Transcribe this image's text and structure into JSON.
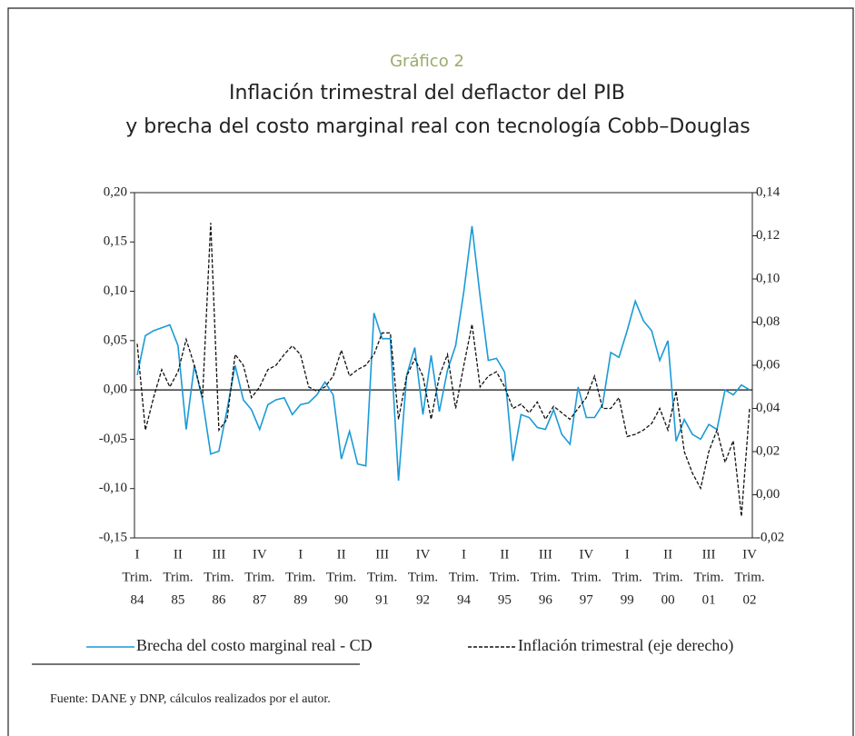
{
  "chart_data": {
    "type": "line",
    "figure_label": "Gráfico 2",
    "title": [
      "Inflación trimestral del deflactor del PIB",
      "y brecha del costo marginal real con tecnología Cobb–Douglas"
    ],
    "source": "Fuente: DANE y DNP, cálculos realizados por el autor.",
    "categories": [
      [
        "I",
        "Trim.",
        "84"
      ],
      null,
      null,
      null,
      null,
      [
        "II",
        "Trim.",
        "85"
      ],
      null,
      null,
      null,
      null,
      [
        "III",
        "Trim.",
        "86"
      ],
      null,
      null,
      null,
      null,
      [
        "IV",
        "Trim.",
        "87"
      ],
      null,
      null,
      null,
      null,
      [
        "I",
        "Trim.",
        "89"
      ],
      null,
      null,
      null,
      null,
      [
        "II",
        "Trim.",
        "90"
      ],
      null,
      null,
      null,
      null,
      [
        "III",
        "Trim.",
        "91"
      ],
      null,
      null,
      null,
      null,
      [
        "IV",
        "Trim.",
        "92"
      ],
      null,
      null,
      null,
      null,
      [
        "I",
        "Trim.",
        "94"
      ],
      null,
      null,
      null,
      null,
      [
        "II",
        "Trim.",
        "95"
      ],
      null,
      null,
      null,
      null,
      [
        "III",
        "Trim.",
        "96"
      ],
      null,
      null,
      null,
      null,
      [
        "IV",
        "Trim.",
        "97"
      ],
      null,
      null,
      null,
      null,
      [
        "I",
        "Trim.",
        "99"
      ],
      null,
      null,
      null,
      null,
      [
        "II",
        "Trim.",
        "00"
      ],
      null,
      null,
      null,
      null,
      [
        "III",
        "Trim.",
        "01"
      ],
      null,
      null,
      null,
      null,
      [
        "IV",
        "Trim.",
        "02"
      ]
    ],
    "series": [
      {
        "name": "Brecha del costo marginal real - CD",
        "color": "#1a9ad6",
        "axis": "y",
        "dash": false,
        "values": [
          0.015,
          0.055,
          0.06,
          0.063,
          0.066,
          0.045,
          -0.04,
          0.025,
          -0.01,
          -0.065,
          -0.062,
          -0.02,
          0.025,
          -0.01,
          -0.02,
          -0.04,
          -0.015,
          -0.01,
          -0.008,
          -0.025,
          -0.015,
          -0.013,
          -0.005,
          0.008,
          -0.005,
          -0.07,
          -0.042,
          -0.075,
          -0.077,
          0.078,
          0.052,
          0.052,
          -0.092,
          0.015,
          0.043,
          -0.025,
          0.035,
          -0.022,
          0.02,
          0.045,
          0.1,
          0.166,
          0.095,
          0.03,
          0.032,
          0.018,
          -0.072,
          -0.025,
          -0.028,
          -0.038,
          -0.04,
          -0.02,
          -0.045,
          -0.055,
          0.003,
          -0.028,
          -0.028,
          -0.015,
          0.038,
          0.033,
          0.06,
          0.09,
          0.07,
          0.06,
          0.03,
          0.05,
          -0.052,
          -0.03,
          -0.045,
          -0.05,
          -0.035,
          -0.04,
          0.0,
          -0.005,
          0.005,
          0.0
        ]
      },
      {
        "name": "Inflación trimestral (eje derecho)",
        "color": "#111111",
        "axis": "y2",
        "dash": true,
        "values": [
          0.07,
          0.03,
          0.045,
          0.058,
          0.05,
          0.057,
          0.072,
          0.06,
          0.045,
          0.126,
          0.03,
          0.035,
          0.065,
          0.06,
          0.045,
          0.05,
          0.058,
          0.06,
          0.065,
          0.069,
          0.065,
          0.05,
          0.048,
          0.05,
          0.055,
          0.067,
          0.055,
          0.058,
          0.06,
          0.065,
          0.075,
          0.075,
          0.035,
          0.055,
          0.063,
          0.055,
          0.035,
          0.055,
          0.065,
          0.04,
          0.06,
          0.079,
          0.05,
          0.055,
          0.057,
          0.05,
          0.04,
          0.042,
          0.038,
          0.043,
          0.035,
          0.041,
          0.038,
          0.035,
          0.04,
          0.045,
          0.055,
          0.04,
          0.04,
          0.045,
          0.027,
          0.028,
          0.03,
          0.033,
          0.04,
          0.03,
          0.048,
          0.02,
          0.01,
          0.003,
          0.02,
          0.03,
          0.015,
          0.025,
          -0.01,
          0.04
        ]
      }
    ],
    "ylim": [
      -0.15,
      0.2
    ],
    "yticks": [
      {
        "value": 0.2,
        "label": "0,20"
      },
      {
        "value": 0.15,
        "label": "0,15"
      },
      {
        "value": 0.1,
        "label": "0,10"
      },
      {
        "value": 0.05,
        "label": "0,05"
      },
      {
        "value": 0,
        "label": "0,00"
      },
      {
        "value": -0.05,
        "label": "-0,05"
      },
      {
        "value": -0.1,
        "label": "-0,10"
      },
      {
        "value": -0.15,
        "label": "-0,15"
      }
    ],
    "y2lim": [
      -0.02,
      0.14
    ],
    "y2ticks": [
      {
        "value": 0.14,
        "label": "0,14"
      },
      {
        "value": 0.12,
        "label": "0,12"
      },
      {
        "value": 0.1,
        "label": "0,10"
      },
      {
        "value": 0.08,
        "label": "0,08"
      },
      {
        "value": 0.06,
        "label": "0,06"
      },
      {
        "value": 0.04,
        "label": "0,04"
      },
      {
        "value": 0.02,
        "label": "0,02"
      },
      {
        "value": 0,
        "label": "0,00"
      },
      {
        "value": -0.02,
        "label": "-0,02"
      }
    ]
  }
}
